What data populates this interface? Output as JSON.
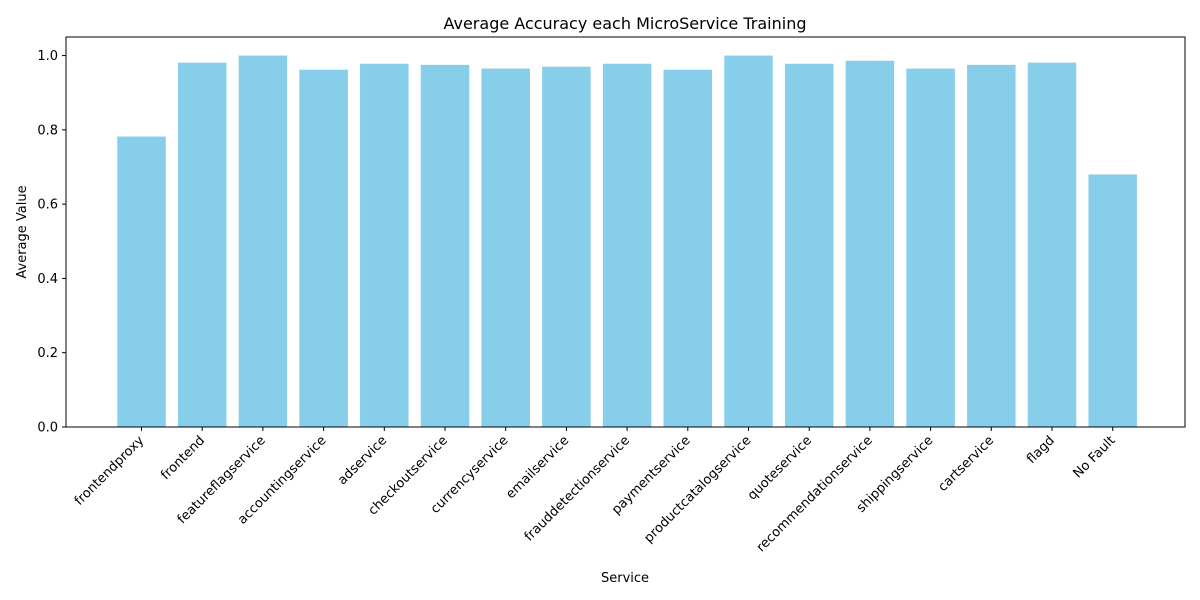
{
  "chart_data": {
    "type": "bar",
    "title": "Average Accuracy each MicroService Training",
    "xlabel": "Service",
    "ylabel": "Average Value",
    "ylim": [
      0,
      1.05
    ],
    "yticks": [
      "0.0",
      "0.2",
      "0.4",
      "0.6",
      "0.8",
      "1.0"
    ],
    "grid": false,
    "bar_color": "#87CEEB",
    "categories": [
      "frontendproxy",
      "frontend",
      "featureflagservice",
      "accountingservice",
      "adservice",
      "checkoutservice",
      "currencyservice",
      "emailservice",
      "frauddetectionservice",
      "paymentservice",
      "productcatalogservice",
      "quoteservice",
      "recommendationservice",
      "shippingservice",
      "cartservice",
      "flagd",
      "No Fault"
    ],
    "values": [
      0.782,
      0.981,
      1.0,
      0.962,
      0.978,
      0.975,
      0.965,
      0.97,
      0.978,
      0.962,
      1.0,
      0.978,
      0.986,
      0.965,
      0.975,
      0.981,
      0.68
    ]
  }
}
